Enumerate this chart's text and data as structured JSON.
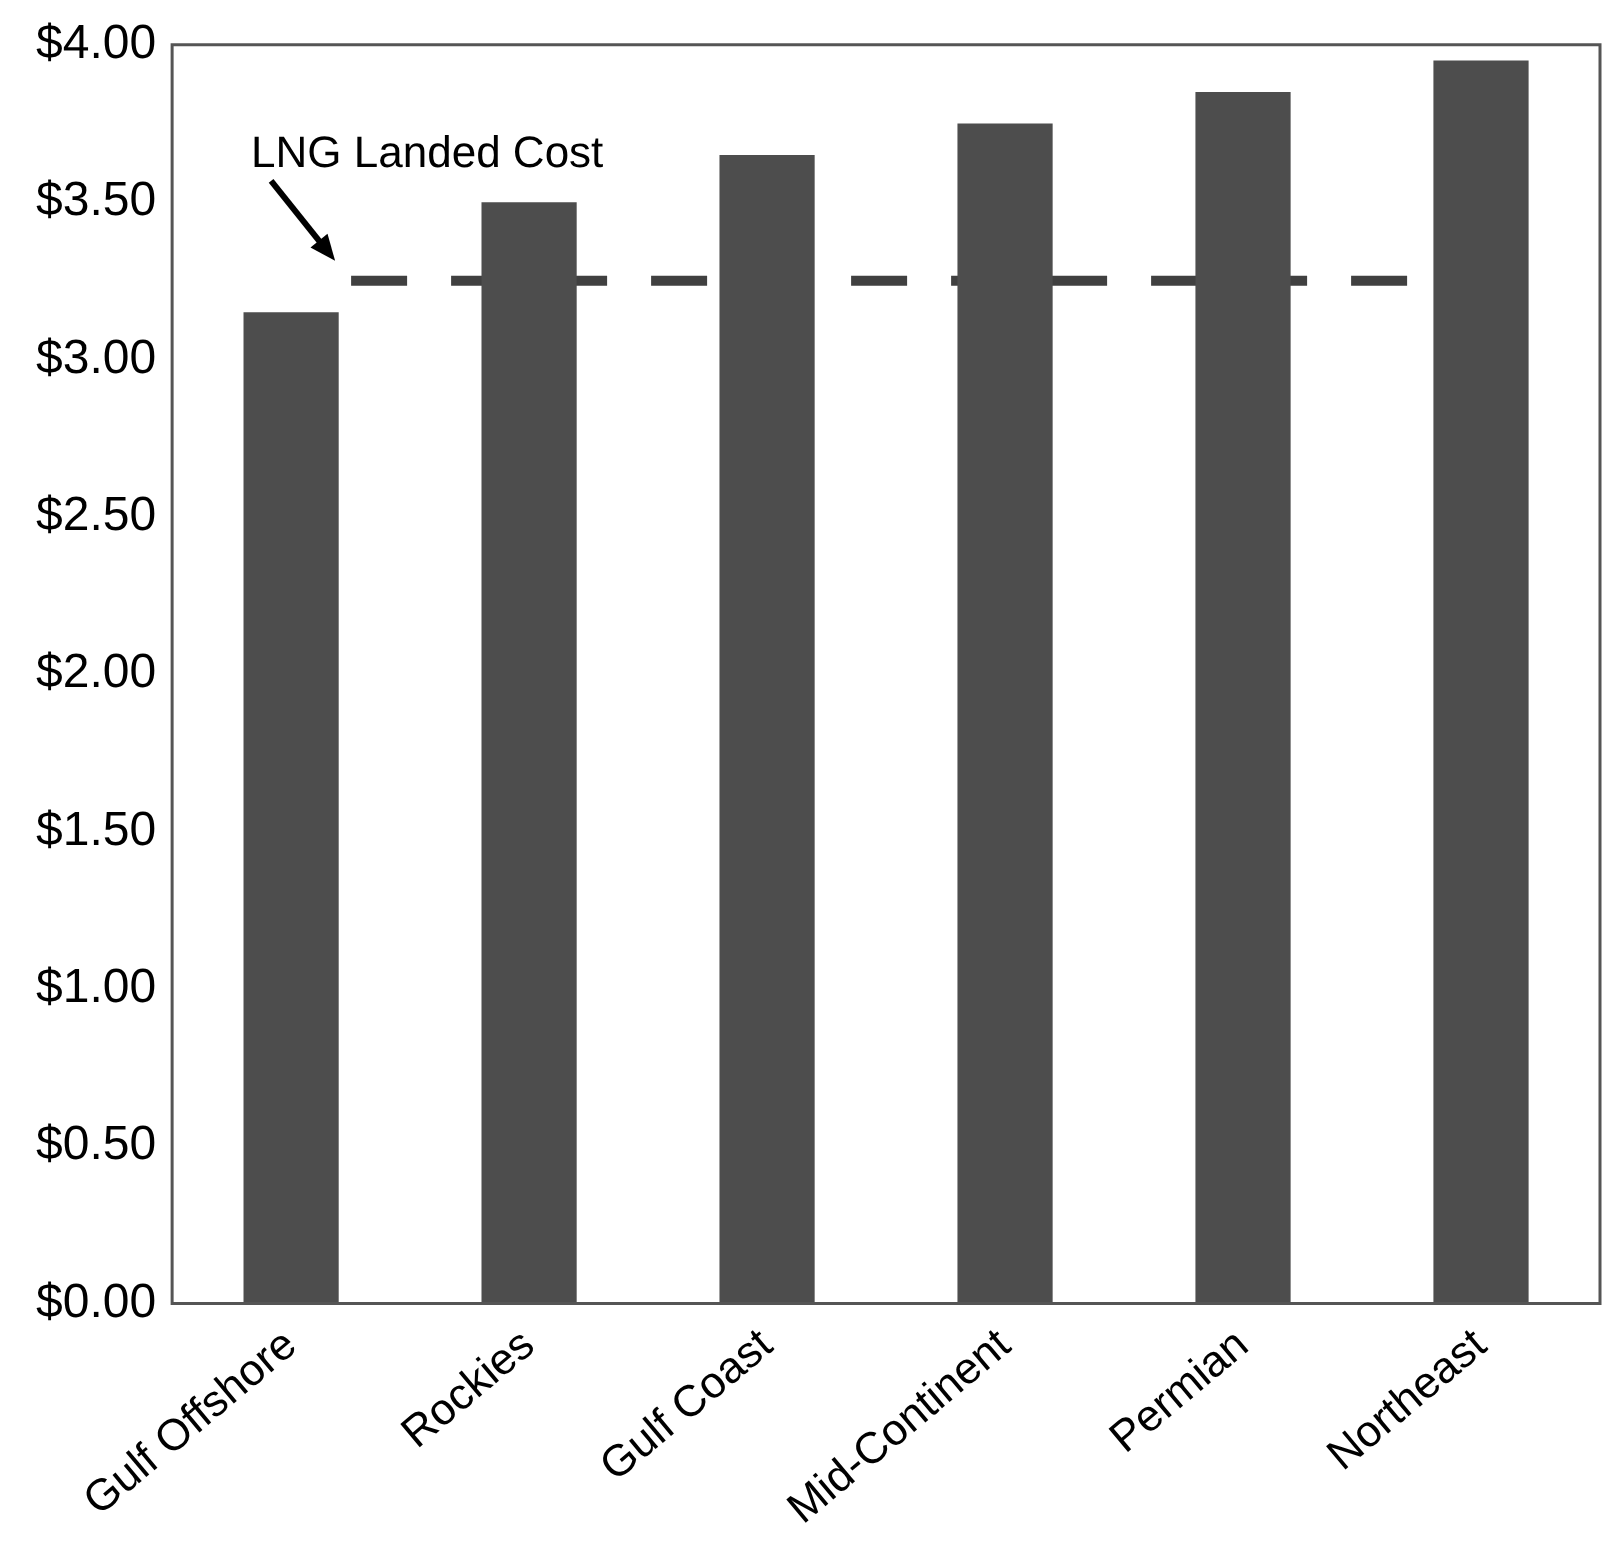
{
  "chart_data": {
    "type": "bar",
    "categories": [
      "Gulf Offshore",
      "Rockies",
      "Gulf Coast",
      "Mid-Continent",
      "Permian",
      "Northeast"
    ],
    "values": [
      3.15,
      3.5,
      3.65,
      3.75,
      3.85,
      3.95
    ],
    "color": "#4d4d4d",
    "ylim": [
      0,
      4
    ],
    "yticks": [
      {
        "value": 0,
        "label": "$0.00"
      },
      {
        "value": 0.5,
        "label": "$0.50"
      },
      {
        "value": 1,
        "label": "$1.00"
      },
      {
        "value": 1.5,
        "label": "$1.50"
      },
      {
        "value": 2,
        "label": "$2.00"
      },
      {
        "value": 2.5,
        "label": "$2.50"
      },
      {
        "value": 3,
        "label": "$3.00"
      },
      {
        "value": 3.5,
        "label": "$3.50"
      },
      {
        "value": 4,
        "label": "$4.00"
      }
    ],
    "ref_lines": [
      {
        "axis": "y",
        "value": 3.25,
        "label": "LNG Landed Cost",
        "color": "#404040",
        "line_style": "dashed"
      }
    ],
    "grid": false,
    "legend": false
  }
}
